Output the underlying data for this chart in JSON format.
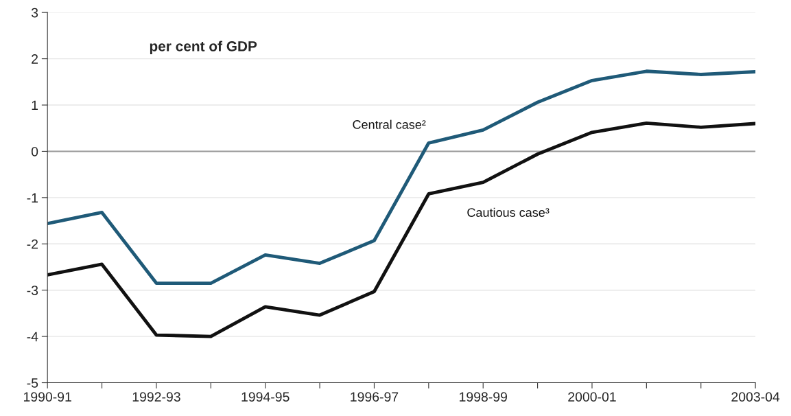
{
  "chart_data": {
    "type": "line",
    "title": "per cent of GDP",
    "categories": [
      "1990-91",
      null,
      "1992-93",
      null,
      "1994-95",
      null,
      "1996-97",
      null,
      "1998-99",
      null,
      "2000-01",
      null,
      null,
      "2003-04"
    ],
    "series": [
      {
        "name": "Central case²",
        "color": "#1f5a78",
        "values": [
          -1.56,
          -1.32,
          -2.85,
          -2.85,
          -2.24,
          -2.42,
          -1.93,
          0.18,
          0.46,
          1.06,
          1.53,
          1.73,
          1.66,
          1.72
        ]
      },
      {
        "name": "Cautious case³",
        "color": "#111111",
        "values": [
          -2.67,
          -2.44,
          -3.97,
          -4.0,
          -3.36,
          -3.54,
          -3.03,
          -0.92,
          -0.67,
          -0.06,
          0.41,
          0.61,
          0.52,
          0.6
        ]
      }
    ],
    "ylim": [
      -5,
      3
    ],
    "yticks": [
      {
        "value": -5,
        "label": "-5"
      },
      {
        "value": -4,
        "label": "-4"
      },
      {
        "value": -3,
        "label": "-3"
      },
      {
        "value": -2,
        "label": "-2"
      },
      {
        "value": -1,
        "label": "-1"
      },
      0,
      1,
      2,
      3
    ],
    "ref_lines": [
      {
        "axis": "y",
        "value": 0,
        "color": "#999999"
      }
    ],
    "grid": "y",
    "legend": false,
    "line_style": "solid",
    "marker": "none"
  }
}
